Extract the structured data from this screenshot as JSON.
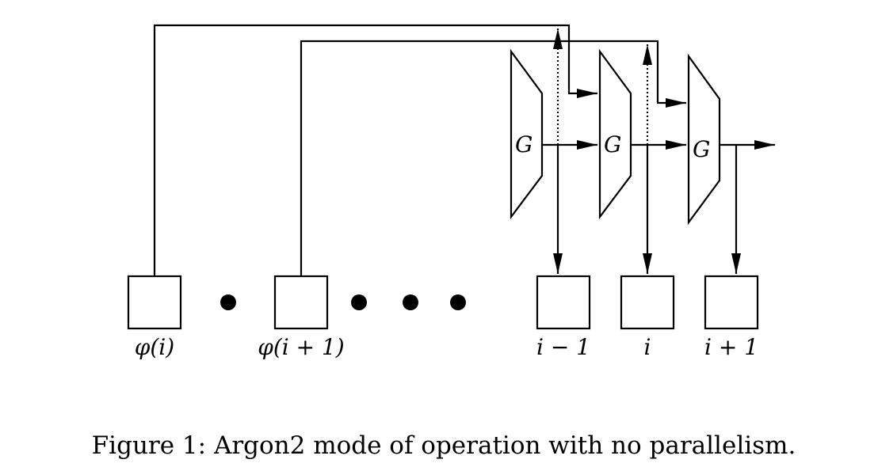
{
  "diagram": {
    "g_labels": [
      "G",
      "G",
      "G"
    ],
    "block_labels": {
      "phi_i": "φ(i)",
      "phi_i_plus_1": "φ(i + 1)",
      "i_minus_1": "i − 1",
      "i": "i",
      "i_plus_1": "i + 1"
    }
  },
  "caption": "Figure 1: Argon2 mode of operation with no parallelism."
}
